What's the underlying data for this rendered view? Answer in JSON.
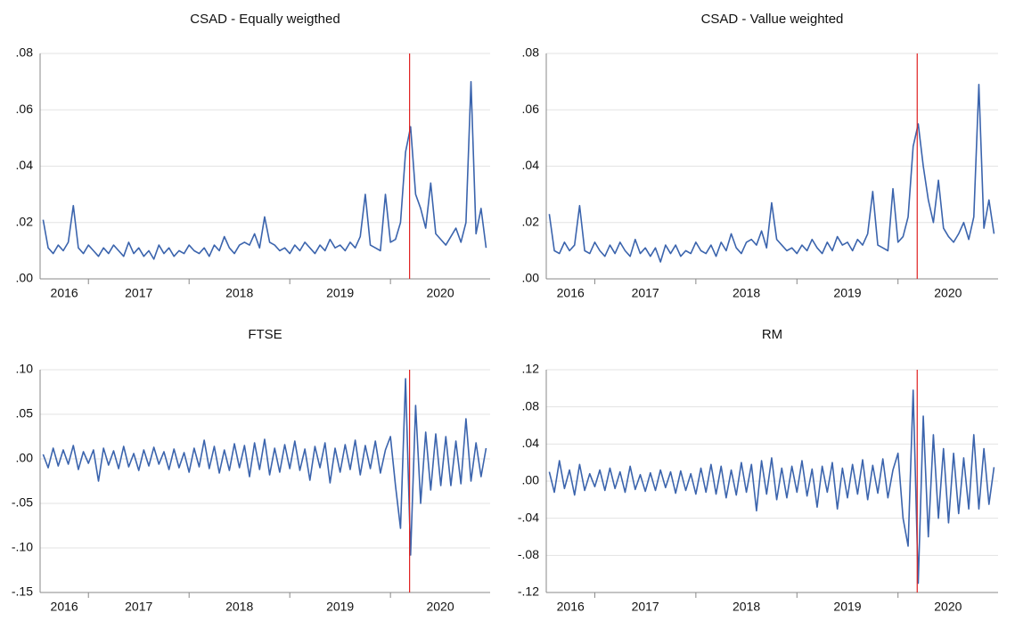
{
  "chart_data": [
    {
      "type": "line",
      "title": "CSAD - Equally weigthed",
      "color": "#3b64ad",
      "x": [
        2016.55,
        2016.6,
        2016.65,
        2016.7,
        2016.75,
        2016.8,
        2016.85,
        2016.9,
        2016.95,
        2017,
        2017.05,
        2017.1,
        2017.15,
        2017.2,
        2017.25,
        2017.3,
        2017.35,
        2017.4,
        2017.45,
        2017.5,
        2017.55,
        2017.6,
        2017.65,
        2017.7,
        2017.75,
        2017.8,
        2017.85,
        2017.9,
        2017.95,
        2018,
        2018.05,
        2018.1,
        2018.15,
        2018.2,
        2018.25,
        2018.3,
        2018.35,
        2018.4,
        2018.45,
        2018.5,
        2018.55,
        2018.6,
        2018.65,
        2018.7,
        2018.75,
        2018.8,
        2018.85,
        2018.9,
        2018.95,
        2019,
        2019.05,
        2019.1,
        2019.15,
        2019.2,
        2019.25,
        2019.3,
        2019.35,
        2019.4,
        2019.45,
        2019.5,
        2019.55,
        2019.6,
        2019.65,
        2019.7,
        2019.75,
        2019.8,
        2019.85,
        2019.9,
        2019.95,
        2020,
        2020.05,
        2020.1,
        2020.15,
        2020.2,
        2020.25,
        2020.3,
        2020.35,
        2020.4,
        2020.45,
        2020.5,
        2020.55,
        2020.6,
        2020.65,
        2020.7,
        2020.75,
        2020.8,
        2020.85,
        2020.9,
        2020.95
      ],
      "values": [
        0.021,
        0.011,
        0.009,
        0.012,
        0.01,
        0.013,
        0.026,
        0.011,
        0.009,
        0.012,
        0.01,
        0.008,
        0.011,
        0.009,
        0.012,
        0.01,
        0.008,
        0.013,
        0.009,
        0.011,
        0.008,
        0.01,
        0.007,
        0.012,
        0.009,
        0.011,
        0.008,
        0.01,
        0.009,
        0.012,
        0.01,
        0.009,
        0.011,
        0.008,
        0.012,
        0.01,
        0.015,
        0.011,
        0.009,
        0.012,
        0.013,
        0.012,
        0.016,
        0.011,
        0.022,
        0.013,
        0.012,
        0.01,
        0.011,
        0.009,
        0.012,
        0.01,
        0.013,
        0.011,
        0.009,
        0.012,
        0.01,
        0.014,
        0.011,
        0.012,
        0.01,
        0.013,
        0.011,
        0.015,
        0.03,
        0.012,
        0.011,
        0.01,
        0.03,
        0.013,
        0.014,
        0.02,
        0.045,
        0.054,
        0.03,
        0.025,
        0.018,
        0.034,
        0.016,
        0.014,
        0.012,
        0.015,
        0.018,
        0.013,
        0.02,
        0.07,
        0.016,
        0.025,
        0.011
      ],
      "xlim": [
        2016.52,
        2020.99
      ],
      "xticks": [
        2016,
        2017,
        2018,
        2019,
        2020
      ],
      "ylim": [
        0,
        0.08
      ],
      "yticks": [
        {
          "value": 0,
          "label": ".00"
        },
        {
          "value": 0.02,
          "label": ".02"
        },
        {
          "value": 0.04,
          "label": ".04"
        },
        {
          "value": 0.06,
          "label": ".06"
        },
        {
          "value": 0.08,
          "label": ".08"
        }
      ],
      "grid": true,
      "vline": {
        "value": 2020.19,
        "color": "#e02020"
      }
    },
    {
      "type": "line",
      "title": "CSAD - Vallue weighted",
      "color": "#3b64ad",
      "x": [
        2016.55,
        2016.6,
        2016.65,
        2016.7,
        2016.75,
        2016.8,
        2016.85,
        2016.9,
        2016.95,
        2017,
        2017.05,
        2017.1,
        2017.15,
        2017.2,
        2017.25,
        2017.3,
        2017.35,
        2017.4,
        2017.45,
        2017.5,
        2017.55,
        2017.6,
        2017.65,
        2017.7,
        2017.75,
        2017.8,
        2017.85,
        2017.9,
        2017.95,
        2018,
        2018.05,
        2018.1,
        2018.15,
        2018.2,
        2018.25,
        2018.3,
        2018.35,
        2018.4,
        2018.45,
        2018.5,
        2018.55,
        2018.6,
        2018.65,
        2018.7,
        2018.75,
        2018.8,
        2018.85,
        2018.9,
        2018.95,
        2019,
        2019.05,
        2019.1,
        2019.15,
        2019.2,
        2019.25,
        2019.3,
        2019.35,
        2019.4,
        2019.45,
        2019.5,
        2019.55,
        2019.6,
        2019.65,
        2019.7,
        2019.75,
        2019.8,
        2019.85,
        2019.9,
        2019.95,
        2020,
        2020.05,
        2020.1,
        2020.15,
        2020.2,
        2020.25,
        2020.3,
        2020.35,
        2020.4,
        2020.45,
        2020.5,
        2020.55,
        2020.6,
        2020.65,
        2020.7,
        2020.75,
        2020.8,
        2020.85,
        2020.9,
        2020.95
      ],
      "values": [
        0.023,
        0.01,
        0.009,
        0.013,
        0.01,
        0.012,
        0.026,
        0.01,
        0.009,
        0.013,
        0.01,
        0.008,
        0.012,
        0.009,
        0.013,
        0.01,
        0.008,
        0.014,
        0.009,
        0.011,
        0.008,
        0.011,
        0.006,
        0.012,
        0.009,
        0.012,
        0.008,
        0.01,
        0.009,
        0.013,
        0.01,
        0.009,
        0.012,
        0.008,
        0.013,
        0.01,
        0.016,
        0.011,
        0.009,
        0.013,
        0.014,
        0.012,
        0.017,
        0.011,
        0.027,
        0.014,
        0.012,
        0.01,
        0.011,
        0.009,
        0.012,
        0.01,
        0.014,
        0.011,
        0.009,
        0.013,
        0.01,
        0.015,
        0.012,
        0.013,
        0.01,
        0.014,
        0.012,
        0.016,
        0.031,
        0.012,
        0.011,
        0.01,
        0.032,
        0.013,
        0.015,
        0.022,
        0.047,
        0.055,
        0.04,
        0.028,
        0.02,
        0.035,
        0.018,
        0.015,
        0.013,
        0.016,
        0.02,
        0.014,
        0.022,
        0.069,
        0.018,
        0.028,
        0.016
      ],
      "xlim": [
        2016.52,
        2020.99
      ],
      "xticks": [
        2016,
        2017,
        2018,
        2019,
        2020
      ],
      "ylim": [
        0,
        0.08
      ],
      "yticks": [
        {
          "value": 0,
          "label": ".00"
        },
        {
          "value": 0.02,
          "label": ".02"
        },
        {
          "value": 0.04,
          "label": ".04"
        },
        {
          "value": 0.06,
          "label": ".06"
        },
        {
          "value": 0.08,
          "label": ".08"
        }
      ],
      "grid": true,
      "vline": {
        "value": 2020.19,
        "color": "#e02020"
      }
    },
    {
      "type": "line",
      "title": "FTSE",
      "color": "#3b64ad",
      "x": [
        2016.55,
        2016.6,
        2016.65,
        2016.7,
        2016.75,
        2016.8,
        2016.85,
        2016.9,
        2016.95,
        2017,
        2017.05,
        2017.1,
        2017.15,
        2017.2,
        2017.25,
        2017.3,
        2017.35,
        2017.4,
        2017.45,
        2017.5,
        2017.55,
        2017.6,
        2017.65,
        2017.7,
        2017.75,
        2017.8,
        2017.85,
        2017.9,
        2017.95,
        2018,
        2018.05,
        2018.1,
        2018.15,
        2018.2,
        2018.25,
        2018.3,
        2018.35,
        2018.4,
        2018.45,
        2018.5,
        2018.55,
        2018.6,
        2018.65,
        2018.7,
        2018.75,
        2018.8,
        2018.85,
        2018.9,
        2018.95,
        2019,
        2019.05,
        2019.1,
        2019.15,
        2019.2,
        2019.25,
        2019.3,
        2019.35,
        2019.4,
        2019.45,
        2019.5,
        2019.55,
        2019.6,
        2019.65,
        2019.7,
        2019.75,
        2019.8,
        2019.85,
        2019.9,
        2019.95,
        2020,
        2020.05,
        2020.1,
        2020.15,
        2020.2,
        2020.25,
        2020.3,
        2020.35,
        2020.4,
        2020.45,
        2020.5,
        2020.55,
        2020.6,
        2020.65,
        2020.7,
        2020.75,
        2020.8,
        2020.85,
        2020.9,
        2020.95
      ],
      "values": [
        0.005,
        -0.01,
        0.012,
        -0.008,
        0.01,
        -0.006,
        0.015,
        -0.012,
        0.008,
        -0.005,
        0.01,
        -0.025,
        0.012,
        -0.007,
        0.009,
        -0.011,
        0.014,
        -0.009,
        0.006,
        -0.013,
        0.01,
        -0.008,
        0.013,
        -0.006,
        0.008,
        -0.012,
        0.011,
        -0.01,
        0.007,
        -0.015,
        0.012,
        -0.009,
        0.021,
        -0.011,
        0.014,
        -0.016,
        0.01,
        -0.013,
        0.017,
        -0.01,
        0.015,
        -0.02,
        0.018,
        -0.012,
        0.022,
        -0.018,
        0.012,
        -0.015,
        0.016,
        -0.011,
        0.02,
        -0.013,
        0.011,
        -0.024,
        0.014,
        -0.01,
        0.018,
        -0.027,
        0.012,
        -0.015,
        0.016,
        -0.012,
        0.021,
        -0.018,
        0.015,
        -0.011,
        0.02,
        -0.016,
        0.01,
        0.025,
        -0.03,
        -0.078,
        0.09,
        -0.108,
        0.06,
        -0.05,
        0.03,
        -0.035,
        0.028,
        -0.03,
        0.025,
        -0.03,
        0.02,
        -0.028,
        0.045,
        -0.025,
        0.018,
        -0.02,
        0.012
      ],
      "xlim": [
        2016.52,
        2020.99
      ],
      "xticks": [
        2016,
        2017,
        2018,
        2019,
        2020
      ],
      "ylim": [
        -0.15,
        0.1
      ],
      "yticks": [
        {
          "value": -0.15,
          "label": "-.15"
        },
        {
          "value": -0.1,
          "label": "-.10"
        },
        {
          "value": -0.05,
          "label": "-.05"
        },
        {
          "value": 0,
          "label": ".00"
        },
        {
          "value": 0.05,
          "label": ".05"
        },
        {
          "value": 0.1,
          "label": ".10"
        }
      ],
      "grid": true,
      "vline": {
        "value": 2020.19,
        "color": "#e02020"
      }
    },
    {
      "type": "line",
      "title": "RM",
      "color": "#3b64ad",
      "x": [
        2016.55,
        2016.6,
        2016.65,
        2016.7,
        2016.75,
        2016.8,
        2016.85,
        2016.9,
        2016.95,
        2017,
        2017.05,
        2017.1,
        2017.15,
        2017.2,
        2017.25,
        2017.3,
        2017.35,
        2017.4,
        2017.45,
        2017.5,
        2017.55,
        2017.6,
        2017.65,
        2017.7,
        2017.75,
        2017.8,
        2017.85,
        2017.9,
        2017.95,
        2018,
        2018.05,
        2018.1,
        2018.15,
        2018.2,
        2018.25,
        2018.3,
        2018.35,
        2018.4,
        2018.45,
        2018.5,
        2018.55,
        2018.6,
        2018.65,
        2018.7,
        2018.75,
        2018.8,
        2018.85,
        2018.9,
        2018.95,
        2019,
        2019.05,
        2019.1,
        2019.15,
        2019.2,
        2019.25,
        2019.3,
        2019.35,
        2019.4,
        2019.45,
        2019.5,
        2019.55,
        2019.6,
        2019.65,
        2019.7,
        2019.75,
        2019.8,
        2019.85,
        2019.9,
        2019.95,
        2020,
        2020.05,
        2020.1,
        2020.15,
        2020.2,
        2020.25,
        2020.3,
        2020.35,
        2020.4,
        2020.45,
        2020.5,
        2020.55,
        2020.6,
        2020.65,
        2020.7,
        2020.75,
        2020.8,
        2020.85,
        2020.9,
        2020.95
      ],
      "values": [
        0.01,
        -0.012,
        0.022,
        -0.008,
        0.012,
        -0.015,
        0.018,
        -0.01,
        0.008,
        -0.006,
        0.012,
        -0.01,
        0.014,
        -0.008,
        0.01,
        -0.012,
        0.016,
        -0.009,
        0.007,
        -0.011,
        0.009,
        -0.01,
        0.012,
        -0.007,
        0.01,
        -0.013,
        0.011,
        -0.01,
        0.008,
        -0.014,
        0.014,
        -0.012,
        0.018,
        -0.014,
        0.016,
        -0.018,
        0.012,
        -0.015,
        0.02,
        -0.012,
        0.018,
        -0.032,
        0.022,
        -0.014,
        0.025,
        -0.02,
        0.014,
        -0.018,
        0.016,
        -0.012,
        0.022,
        -0.016,
        0.013,
        -0.028,
        0.016,
        -0.012,
        0.02,
        -0.03,
        0.014,
        -0.018,
        0.018,
        -0.014,
        0.023,
        -0.02,
        0.017,
        -0.013,
        0.024,
        -0.018,
        0.012,
        0.03,
        -0.04,
        -0.07,
        0.098,
        -0.11,
        0.07,
        -0.06,
        0.05,
        -0.04,
        0.035,
        -0.045,
        0.03,
        -0.035,
        0.025,
        -0.03,
        0.05,
        -0.03,
        0.035,
        -0.025,
        0.015
      ],
      "xlim": [
        2016.52,
        2020.99
      ],
      "xticks": [
        2016,
        2017,
        2018,
        2019,
        2020
      ],
      "ylim": [
        -0.12,
        0.12
      ],
      "yticks": [
        {
          "value": -0.12,
          "label": "-.12"
        },
        {
          "value": -0.08,
          "label": "-.08"
        },
        {
          "value": -0.04,
          "label": "-.04"
        },
        {
          "value": 0,
          "label": ".00"
        },
        {
          "value": 0.04,
          "label": ".04"
        },
        {
          "value": 0.08,
          "label": ".08"
        },
        {
          "value": 0.12,
          "label": ".12"
        }
      ],
      "grid": true,
      "vline": {
        "value": 2020.19,
        "color": "#e02020"
      }
    }
  ]
}
